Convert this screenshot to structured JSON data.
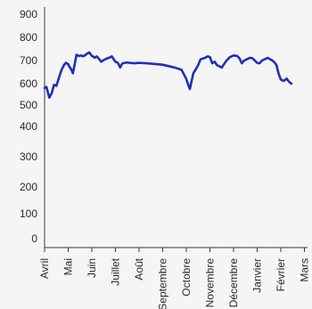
{
  "chart_data": {
    "type": "line",
    "title": "",
    "xlabel": "",
    "ylabel": "",
    "y_tick_labels": [
      "900",
      "800",
      "700",
      "600",
      "500",
      "400",
      "300",
      "200",
      "100",
      "0"
    ],
    "x_tick_labels": [
      "Avril",
      "Mai",
      "Juin",
      "Juillet",
      "Août",
      "Septembre",
      "Octobre",
      "Novembre",
      "Décembre",
      "Janvier",
      "Février",
      "Mars"
    ],
    "grid": false,
    "legend": "none",
    "line_color": "#1f2fb8",
    "series": [
      {
        "name": "",
        "x": [
          0,
          0.08,
          0.2,
          0.3,
          0.4,
          0.5,
          0.62,
          0.72,
          0.82,
          0.9,
          1.0,
          1.06,
          1.13,
          1.2,
          1.35,
          1.45,
          1.55,
          1.62,
          1.7,
          1.8,
          1.9,
          2.0,
          2.05,
          2.12,
          2.2,
          2.3,
          2.4,
          2.5,
          2.62,
          2.73,
          2.85,
          2.93,
          3.0,
          3.1,
          3.2,
          3.3,
          3.4,
          3.5,
          3.6,
          3.8,
          4.0,
          4.5,
          5.0,
          5.5,
          5.8,
          6.0,
          6.1,
          6.15,
          6.2,
          6.3,
          6.5,
          6.6,
          6.8,
          6.9,
          7.0,
          7.1,
          7.2,
          7.3,
          7.5,
          7.6,
          7.7,
          7.85,
          8.0,
          8.15,
          8.25,
          8.35,
          8.45,
          8.55,
          8.7,
          8.8,
          9.0,
          9.1,
          9.2,
          9.3,
          9.45,
          9.55,
          9.65,
          9.75,
          9.82,
          9.9,
          10.0,
          10.12,
          10.25,
          10.35,
          10.45
        ],
        "values": [
          580,
          585,
          535,
          555,
          595,
          590,
          630,
          660,
          680,
          690,
          685,
          672,
          662,
          645,
          725,
          720,
          722,
          718,
          722,
          730,
          735,
          720,
          718,
          712,
          718,
          708,
          695,
          702,
          708,
          712,
          718,
          705,
          695,
          690,
          670,
          688,
          690,
          692,
          690,
          688,
          690,
          687,
          682,
          670,
          660,
          620,
          590,
          575,
          600,
          645,
          680,
          705,
          712,
          718,
          715,
          688,
          695,
          680,
          670,
          685,
          700,
          715,
          722,
          720,
          710,
          688,
          700,
          705,
          712,
          710,
          690,
          688,
          700,
          705,
          712,
          705,
          700,
          690,
          680,
          645,
          618,
          612,
          622,
          608,
          600
        ]
      }
    ]
  }
}
